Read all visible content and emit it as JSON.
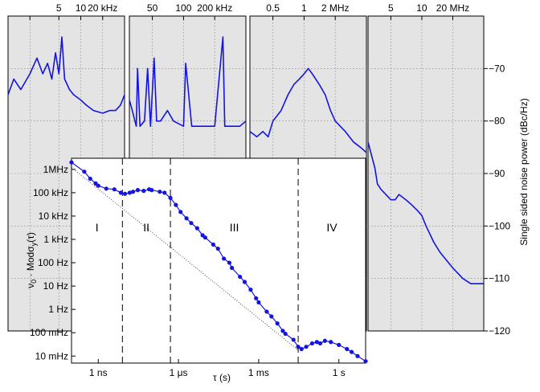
{
  "colors": {
    "trace": "#1414e0",
    "panel_bg": "#e4e4e4"
  },
  "chart_data": [
    {
      "type": "line",
      "ylabel": "Single sided noise power (dBc/Hz)",
      "ylim": [
        -120,
        -60
      ],
      "yticks": [
        "−70",
        "−80",
        "−90",
        "−100",
        "−110",
        "−120"
      ],
      "panels": [
        {
          "xticks": [
            "5",
            "10",
            "20 kHz"
          ],
          "xlim_hz": [
            1000,
            40000
          ],
          "x_hz": [
            1000,
            1200,
            1500,
            2000,
            2500,
            3000,
            3500,
            4000,
            4500,
            5000,
            5500,
            6000,
            7000,
            8000,
            10000,
            12000,
            15000,
            20000,
            25000,
            30000,
            35000,
            40000
          ],
          "y": [
            -75,
            -72,
            -74,
            -71,
            -68,
            -71,
            -69,
            -72,
            -67,
            -71,
            -64,
            -72,
            -74,
            -75,
            -76,
            -77,
            -78,
            -78.5,
            -78,
            -78,
            -77,
            -75
          ]
        },
        {
          "xticks": [
            "50",
            "100",
            "200 kHz"
          ],
          "xlim_hz": [
            30000,
            400000
          ],
          "x_hz": [
            30000,
            32000,
            35000,
            36000,
            38000,
            42000,
            45000,
            48000,
            52000,
            55000,
            60000,
            70000,
            80000,
            100000,
            105000,
            120000,
            150000,
            200000,
            240000,
            250000,
            280000,
            300000,
            350000,
            400000
          ],
          "y": [
            -76,
            -78,
            -81,
            -70,
            -81,
            -80,
            -70,
            -81,
            -68,
            -80,
            -80,
            -78,
            -80,
            -81,
            -69,
            -81,
            -81,
            -81,
            -64,
            -81,
            -81,
            -81,
            -81,
            -80
          ]
        },
        {
          "xticks": [
            "0.5",
            "1",
            "2 MHz"
          ],
          "xlim_hz": [
            300000,
            4000000
          ],
          "x_hz": [
            300000,
            350000,
            400000,
            450000,
            500000,
            600000,
            700000,
            800000,
            900000,
            1000000,
            1100000,
            1200000,
            1400000,
            1600000,
            1800000,
            2000000,
            2500000,
            3000000,
            3500000,
            4000000
          ],
          "y": [
            -82,
            -83,
            -82,
            -83,
            -80,
            -78,
            -75,
            -73,
            -72,
            -71,
            -70,
            -71,
            -73,
            -75,
            -78,
            -80,
            -82,
            -84,
            -85,
            -86
          ]
        },
        {
          "xticks": [
            "5",
            "10",
            "20 MHz"
          ],
          "xlim_hz": [
            3000000,
            40000000
          ],
          "x_hz": [
            3000000,
            3500000,
            3700000,
            4000000,
            5000000,
            5500000,
            6000000,
            7000000,
            8000000,
            9000000,
            10000000,
            11000000,
            13000000,
            15000000,
            20000000,
            25000000,
            30000000,
            35000000,
            40000000
          ],
          "y": [
            -84,
            -89,
            -92,
            -93,
            -95,
            -95,
            -94,
            -95,
            -96,
            -97,
            -98,
            -100,
            -103,
            -105,
            -108,
            -110,
            -111,
            -111,
            -111
          ]
        }
      ]
    },
    {
      "type": "scatter",
      "xlabel": "τ (s)",
      "ylabel_main": "ν",
      "ylabel_sub0": "0",
      "ylabel_mid": " · Modσ",
      "ylabel_suby": "y",
      "ylabel_end": "(τ)",
      "x_scale": "log",
      "y_scale": "log",
      "xlim_s": [
        1e-10,
        10
      ],
      "ylim_hz": [
        0.005,
        3000000
      ],
      "xticks": [
        {
          "label": "1 ns",
          "value_s": 1e-09
        },
        {
          "label": "1 μs",
          "value_s": 1e-06
        },
        {
          "label": "1 ms",
          "value_s": 0.001
        },
        {
          "label": "1 s",
          "value_s": 1
        }
      ],
      "yticks": [
        {
          "label": "1MHz",
          "value_hz": 1000000
        },
        {
          "label": "100 kHz",
          "value_hz": 100000
        },
        {
          "label": "10 kHz",
          "value_hz": 10000
        },
        {
          "label": "1 kHz",
          "value_hz": 1000
        },
        {
          "label": "100 Hz",
          "value_hz": 100
        },
        {
          "label": "10 Hz",
          "value_hz": 10
        },
        {
          "label": "1 Hz",
          "value_hz": 1
        },
        {
          "label": "100 mHz",
          "value_hz": 0.1
        },
        {
          "label": "10 mHz",
          "value_hz": 0.01
        }
      ],
      "regions": [
        {
          "label": "I"
        },
        {
          "label": "II"
        },
        {
          "label": "III"
        },
        {
          "label": "IV"
        }
      ],
      "region_boundaries_s": [
        8e-09,
        5e-07,
        0.03
      ],
      "points": [
        [
          1e-10,
          2000000
        ],
        [
          3e-10,
          800000
        ],
        [
          5e-10,
          400000
        ],
        [
          8e-10,
          250000
        ],
        [
          1e-09,
          200000
        ],
        [
          2e-09,
          150000
        ],
        [
          4e-09,
          140000
        ],
        [
          7e-09,
          100000
        ],
        [
          1e-08,
          90000
        ],
        [
          1.5e-08,
          100000
        ],
        [
          2e-08,
          110000
        ],
        [
          3e-08,
          130000
        ],
        [
          5e-08,
          120000
        ],
        [
          8e-08,
          140000
        ],
        [
          1e-07,
          130000
        ],
        [
          2e-07,
          110000
        ],
        [
          3e-07,
          100000
        ],
        [
          5e-07,
          60000
        ],
        [
          8e-07,
          30000
        ],
        [
          1.2e-06,
          15000
        ],
        [
          2e-06,
          8000
        ],
        [
          3e-06,
          5000
        ],
        [
          5e-06,
          3000
        ],
        [
          8e-06,
          1500
        ],
        [
          1e-05,
          1200
        ],
        [
          2e-05,
          600
        ],
        [
          3e-05,
          400
        ],
        [
          5e-05,
          150
        ],
        [
          8e-05,
          100
        ],
        [
          0.0001,
          60
        ],
        [
          0.0002,
          25
        ],
        [
          0.0003,
          15
        ],
        [
          0.0005,
          7
        ],
        [
          0.0008,
          3
        ],
        [
          0.001,
          2
        ],
        [
          0.002,
          0.8
        ],
        [
          0.003,
          0.5
        ],
        [
          0.005,
          0.25
        ],
        [
          0.008,
          0.12
        ],
        [
          0.01,
          0.09
        ],
        [
          0.02,
          0.05
        ],
        [
          0.03,
          0.025
        ],
        [
          0.04,
          0.02
        ],
        [
          0.06,
          0.025
        ],
        [
          0.1,
          0.035
        ],
        [
          0.15,
          0.04
        ],
        [
          0.2,
          0.035
        ],
        [
          0.3,
          0.045
        ],
        [
          0.5,
          0.04
        ],
        [
          1,
          0.03
        ],
        [
          2,
          0.02
        ],
        [
          3,
          0.015
        ],
        [
          5,
          0.01
        ],
        [
          10,
          0.006
        ]
      ]
    }
  ]
}
